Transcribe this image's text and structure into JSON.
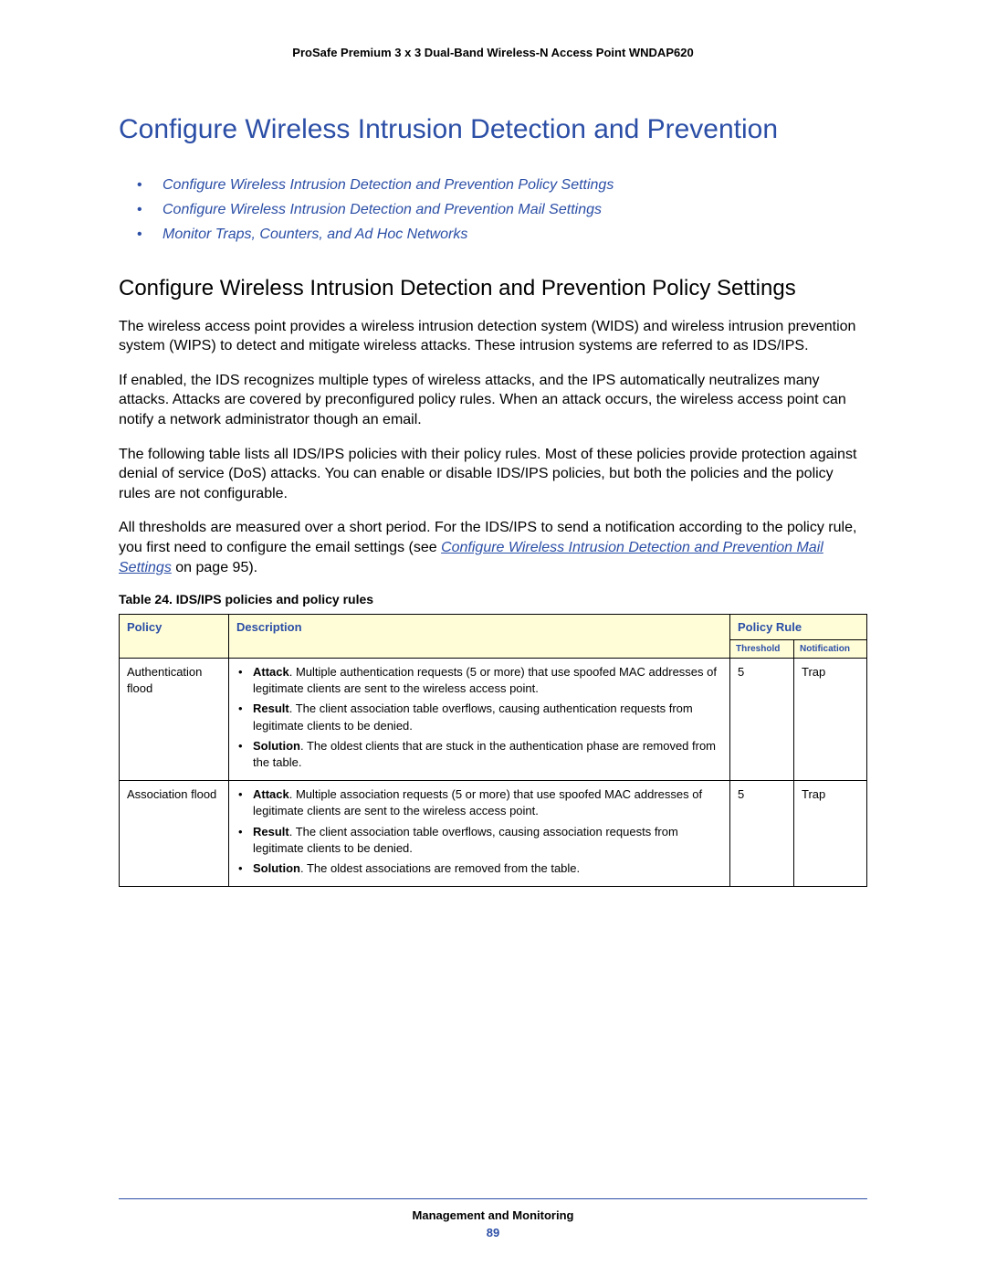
{
  "header": {
    "product": "ProSafe Premium 3 x 3 Dual-Band Wireless-N Access Point WNDAP620"
  },
  "title": "Configure Wireless Intrusion Detection and Prevention",
  "toc": [
    "Configure Wireless Intrusion Detection and Prevention Policy Settings",
    "Configure Wireless Intrusion Detection and Prevention Mail Settings",
    "Monitor Traps, Counters, and Ad Hoc Networks"
  ],
  "section_title": "Configure Wireless Intrusion Detection and Prevention Policy Settings",
  "paragraphs": {
    "p1": "The wireless access point provides a wireless intrusion detection system (WIDS) and wireless intrusion prevention system (WIPS) to detect and mitigate wireless attacks. These intrusion systems are referred to as IDS/IPS.",
    "p2": "If enabled, the IDS recognizes multiple types of wireless attacks, and the IPS automatically neutralizes many attacks. Attacks are covered by preconfigured policy rules. When an attack occurs, the wireless access point can notify a network administrator though an email.",
    "p3": "The following table lists all IDS/IPS policies with their policy rules. Most of these policies provide protection against denial of service (DoS) attacks. You can enable or disable IDS/IPS policies, but both the policies and the policy rules are not configurable.",
    "p4_pre": "All thresholds are measured over a short period. For the IDS/IPS to send a notification according to the policy rule, you first need to configure the email settings (see ",
    "p4_link": "Configure Wireless Intrusion Detection and Prevention Mail Settings",
    "p4_post": " on page 95)."
  },
  "table": {
    "caption": "Table 24.  IDS/IPS policies and policy rules",
    "columns": {
      "policy": "Policy",
      "description": "Description",
      "policy_rule": "Policy Rule",
      "threshold": "Threshold",
      "notification": "Notification"
    },
    "rows": [
      {
        "policy": "Authentication flood",
        "desc": [
          {
            "label": "Attack",
            "text": ". Multiple authentication requests (5 or more) that use spoofed MAC addresses of legitimate clients are sent to the wireless access point."
          },
          {
            "label": "Result",
            "text": ". The client association table overflows, causing authentication requests from legitimate clients to be denied."
          },
          {
            "label": "Solution",
            "text": ". The oldest clients that are stuck in the authentication phase are removed from the table."
          }
        ],
        "threshold": "5",
        "notification": "Trap"
      },
      {
        "policy": "Association flood",
        "desc": [
          {
            "label": "Attack",
            "text": ". Multiple association requests (5 or more) that use spoofed MAC addresses of legitimate clients are sent to the wireless access point."
          },
          {
            "label": "Result",
            "text": ". The client association table overflows, causing association requests from legitimate clients to be denied."
          },
          {
            "label": "Solution",
            "text": ". The oldest associations are removed from the table."
          }
        ],
        "threshold": "5",
        "notification": "Trap"
      }
    ]
  },
  "footer": {
    "section": "Management and Monitoring",
    "page": "89"
  }
}
